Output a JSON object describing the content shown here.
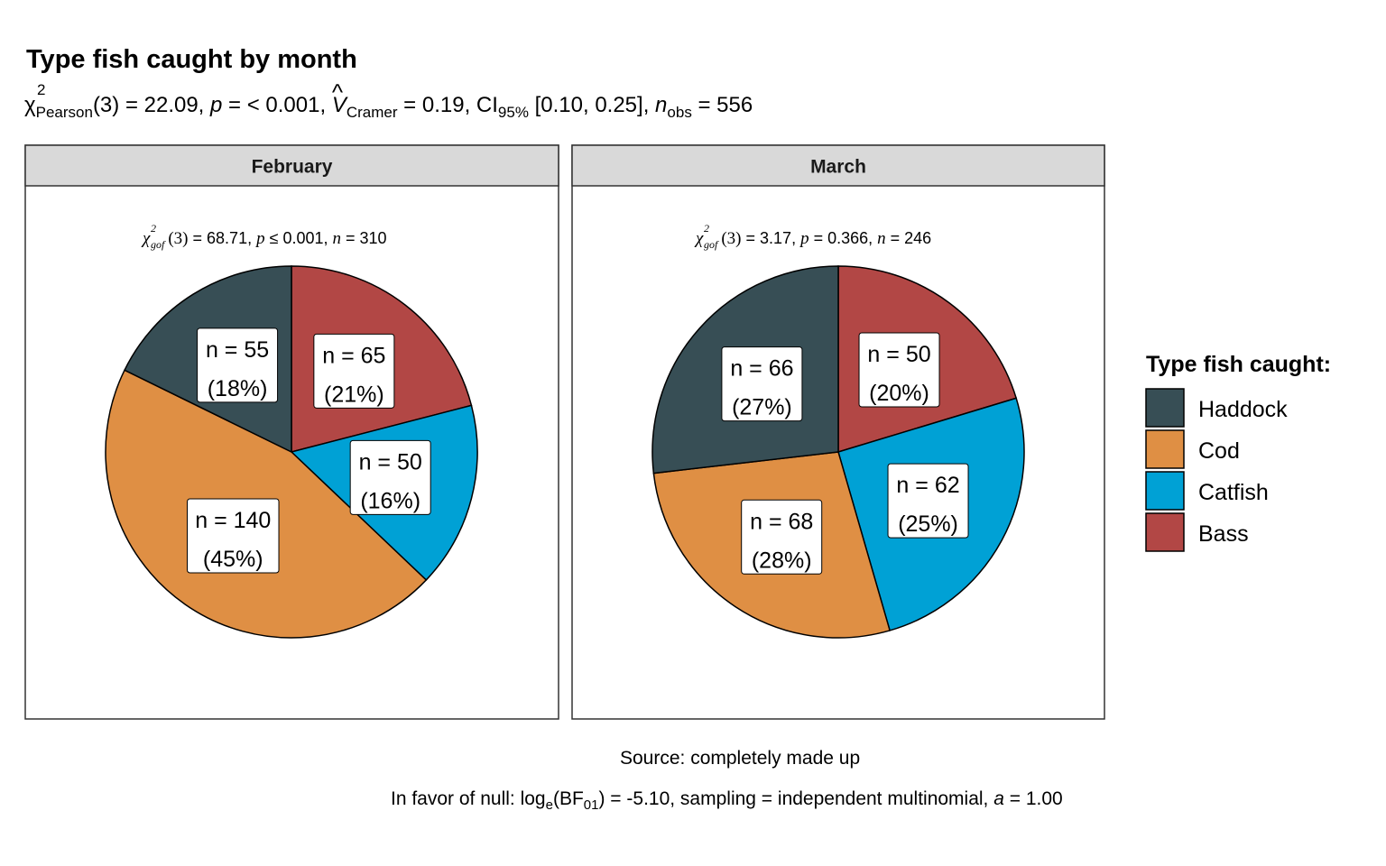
{
  "title": "Type fish caught by month",
  "subtitle": {
    "chi_label": "χ",
    "chi_sup": "2",
    "chi_sub": "Pearson",
    "stat": "(3) = 22.09, ",
    "p_label": "p",
    "p_value": " = < 0.001, ",
    "v_label": "V",
    "v_sub": "Cramer",
    "v_value": " = 0.19, CI",
    "ci_sub": "95%",
    "ci_value": " [0.10, 0.25], ",
    "n_label": "n",
    "n_sub": "obs",
    "n_value": " = 556"
  },
  "caption": {
    "source": "Source: completely made up",
    "bf_prefix": "In favor of null: log",
    "bf_sub_e": "e",
    "bf_mid": "(BF",
    "bf_sub_01": "01",
    "bf_value": ") = -5.10, sampling = independent multinomial, ",
    "a_label": "a",
    "a_value": " = 1.00"
  },
  "legend": {
    "title": "Type fish caught:",
    "items": [
      {
        "label": "Haddock",
        "color": "#374e55"
      },
      {
        "label": "Cod",
        "color": "#df8f44"
      },
      {
        "label": "Catfish",
        "color": "#00a1d5"
      },
      {
        "label": "Bass",
        "color": "#b24745"
      }
    ]
  },
  "chart_data": [
    {
      "type": "pie",
      "facet": "February",
      "subtitle": {
        "chi": "χ",
        "sup": "2",
        "sub": "gof",
        "df": "(3)",
        "stat": " = 68.71,  ",
        "p_label": "p",
        "p_value": " ≤ 0.001,  ",
        "n_label": "n",
        "n_value": " = 310"
      },
      "slices": [
        {
          "category": "Bass",
          "value": 65,
          "percent": 21,
          "label_n": "n = 65",
          "label_pct": "(21%)"
        },
        {
          "category": "Catfish",
          "value": 50,
          "percent": 16,
          "label_n": "n = 50",
          "label_pct": "(16%)"
        },
        {
          "category": "Cod",
          "value": 140,
          "percent": 45,
          "label_n": "n = 140",
          "label_pct": "(45%)"
        },
        {
          "category": "Haddock",
          "value": 55,
          "percent": 18,
          "label_n": "n = 55",
          "label_pct": "(18%)"
        }
      ]
    },
    {
      "type": "pie",
      "facet": "March",
      "subtitle": {
        "chi": "χ",
        "sup": "2",
        "sub": "gof",
        "df": "(3)",
        "stat": " = 3.17,  ",
        "p_label": "p",
        "p_value": " = 0.366,  ",
        "n_label": "n",
        "n_value": " = 246"
      },
      "slices": [
        {
          "category": "Bass",
          "value": 50,
          "percent": 20,
          "label_n": "n = 50",
          "label_pct": "(20%)"
        },
        {
          "category": "Catfish",
          "value": 62,
          "percent": 25,
          "label_n": "n = 62",
          "label_pct": "(25%)"
        },
        {
          "category": "Cod",
          "value": 68,
          "percent": 28,
          "label_n": "n = 68",
          "label_pct": "(28%)"
        },
        {
          "category": "Haddock",
          "value": 66,
          "percent": 27,
          "label_n": "n = 66",
          "label_pct": "(27%)"
        }
      ]
    }
  ]
}
